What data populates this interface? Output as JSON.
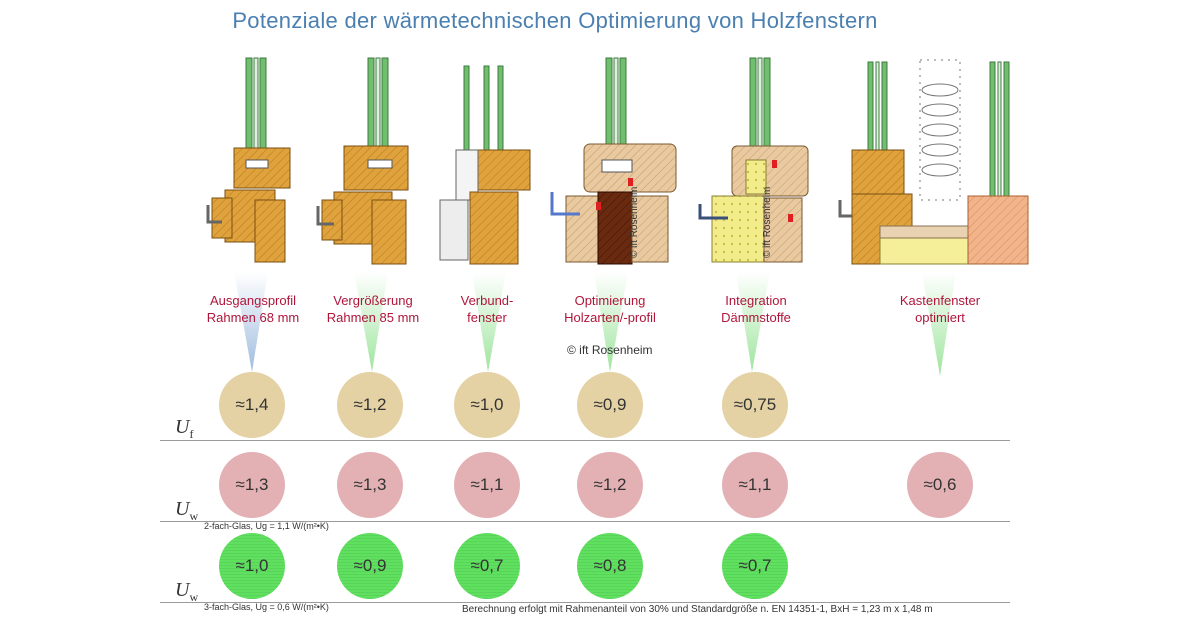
{
  "title": "Potenziale der wärmetechnischen Optimierung von  Holzfenstern",
  "columns": [
    {
      "label_line1": "Ausgangsprofil",
      "label_line2": "Rahmen 68 mm"
    },
    {
      "label_line1": "Vergrößerung",
      "label_line2": "Rahmen 85 mm"
    },
    {
      "label_line1": "Verbund-",
      "label_line2": "fenster"
    },
    {
      "label_line1": "Optimierung",
      "label_line2": "Holzarten/-profil"
    },
    {
      "label_line1": "Integration",
      "label_line2": "Dämmstoffe"
    },
    {
      "label_line1": "Kastenfenster",
      "label_line2": "optimiert"
    }
  ],
  "copyright": "© ift Rosenheim",
  "watermark": "© ift Rosenheim",
  "rows": {
    "uf": {
      "symbol": "U",
      "sub": "f",
      "values": [
        "≈1,4",
        "≈1,2",
        "≈1,0",
        "≈0,9",
        "≈0,75"
      ]
    },
    "uw2": {
      "symbol": "U",
      "sub": "w",
      "note": "2-fach-Glas, Ug = 1,1 W/(m²•K)",
      "values": [
        "≈1,3",
        "≈1,3",
        "≈1,1",
        "≈1,2",
        "≈1,1",
        "≈0,6"
      ]
    },
    "uw3": {
      "symbol": "U",
      "sub": "w",
      "note": "3-fach-Glas, Ug = 0,6 W/(m²•K)",
      "values": [
        "≈1,0",
        "≈0,9",
        "≈0,7",
        "≈0,8",
        "≈0,7"
      ]
    }
  },
  "footnote": "Berechnung  erfolgt mit Rahmenanteil von 30% und Standardgröße n. EN 14351-1, BxH = 1,23 m  x 1,48 m",
  "colors": {
    "title": "#4a7fb0",
    "label": "#b0153a",
    "uf": "#e4d1a4",
    "uw2": "#e3b1b4",
    "uw3": "#5fe05f",
    "wood": "#e0a23c",
    "glass": "#6fbf6f"
  }
}
